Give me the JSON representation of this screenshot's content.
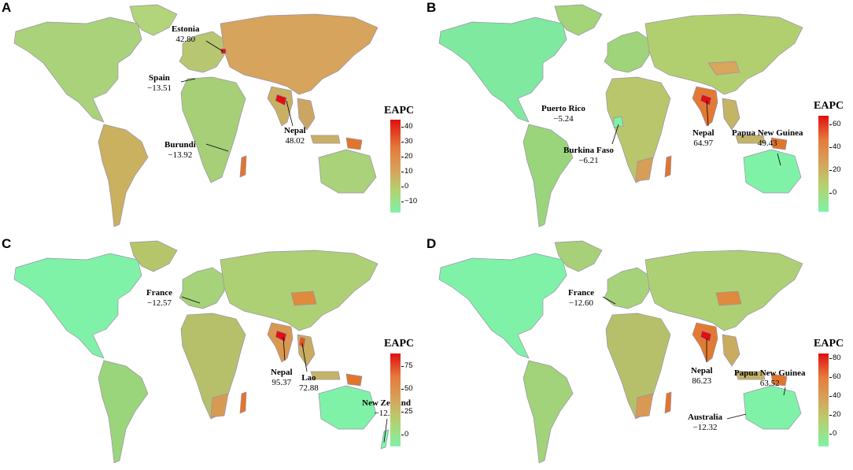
{
  "legend_title": "EAPC",
  "colors": {
    "low": "#7ff2a8",
    "mid": "#b6cf6e",
    "high_mid": "#dca659",
    "high": "#e05a2e",
    "max": "#e01010",
    "border": "#9a8fa8"
  },
  "panels": [
    {
      "letter": "A",
      "ticks": [
        "40",
        "30",
        "20",
        "10",
        "0",
        "−10"
      ],
      "annotations": [
        {
          "name": "Estonia",
          "value": "42.80"
        },
        {
          "name": "Spain",
          "value": "−13.51"
        },
        {
          "name": "Burundi",
          "value": "−13.92"
        },
        {
          "name": "Nepal",
          "value": "48.02"
        }
      ]
    },
    {
      "letter": "B",
      "ticks": [
        "60",
        "40",
        "20",
        "0"
      ],
      "annotations": [
        {
          "name": "Puerto Rico",
          "value": "−5.24"
        },
        {
          "name": "Burkina Faso",
          "value": "−6.21"
        },
        {
          "name": "Nepal",
          "value": "64.97"
        },
        {
          "name": "Papua New Guinea",
          "value": "49.43"
        }
      ]
    },
    {
      "letter": "C",
      "ticks": [
        "75",
        "50",
        "25",
        "0"
      ],
      "annotations": [
        {
          "name": "France",
          "value": "−12.57"
        },
        {
          "name": "Nepal",
          "value": "95.37"
        },
        {
          "name": "Lao",
          "value": "72.88"
        },
        {
          "name": "New Zealand",
          "value": "−12.99"
        }
      ]
    },
    {
      "letter": "D",
      "ticks": [
        "80",
        "60",
        "40",
        "20",
        "0"
      ],
      "annotations": [
        {
          "name": "France",
          "value": "−12.60"
        },
        {
          "name": "Nepal",
          "value": "86.23"
        },
        {
          "name": "Papua New Guinea",
          "value": "63.52"
        },
        {
          "name": "Australia",
          "value": "−12.32"
        }
      ]
    }
  ]
}
